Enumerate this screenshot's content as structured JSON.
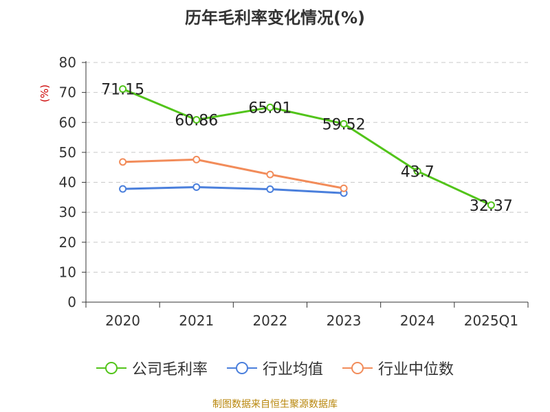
{
  "chart_data": {
    "type": "line",
    "title": "历年毛利率变化情况(%)",
    "y_unit": "(%)",
    "categories": [
      "2020",
      "2021",
      "2022",
      "2023",
      "2024",
      "2025Q1"
    ],
    "ylim": [
      0,
      80
    ],
    "yticks": [
      0,
      10,
      20,
      30,
      40,
      50,
      60,
      70,
      80
    ],
    "grid": true,
    "legend_position": "bottom",
    "series": [
      {
        "name": "公司毛利率",
        "color": "#52c41a",
        "values": [
          71.15,
          60.86,
          65.01,
          59.52,
          43.7,
          32.37
        ],
        "labels": [
          "71.15",
          "60.86",
          "65.01",
          "59.52",
          "43.7",
          "32.37"
        ]
      },
      {
        "name": "行业均值",
        "color": "#4a7fdc",
        "values": [
          37.8,
          38.4,
          37.7,
          36.4,
          null,
          null
        ]
      },
      {
        "name": "行业中位数",
        "color": "#f28c5a",
        "values": [
          46.8,
          47.6,
          42.6,
          38.0,
          null,
          null
        ]
      }
    ]
  },
  "source": "制图数据来自恒生聚源数据库"
}
